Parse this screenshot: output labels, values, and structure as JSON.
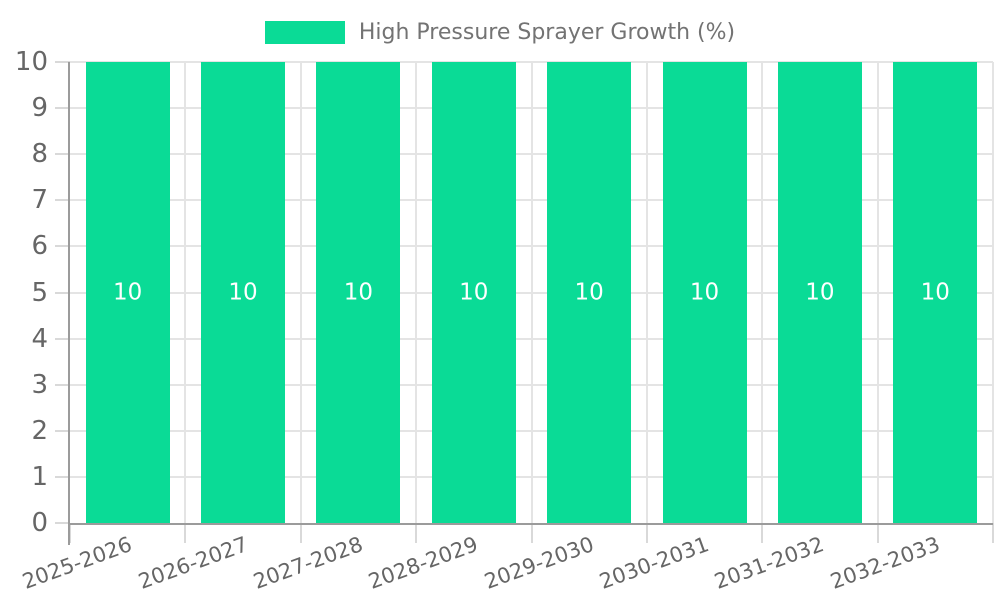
{
  "legend": {
    "label": "High Pressure Sprayer Growth (%)"
  },
  "chart_data": {
    "type": "bar",
    "title": "High Pressure Sprayer Growth (%)",
    "categories": [
      "2025-2026",
      "2026-2027",
      "2027-2028",
      "2028-2029",
      "2029-2030",
      "2030-2031",
      "2031-2032",
      "2032-2033"
    ],
    "series": [
      {
        "name": "High Pressure Sprayer Growth (%)",
        "values": [
          10,
          10,
          10,
          10,
          10,
          10,
          10,
          10
        ]
      }
    ],
    "bar_labels": [
      "10",
      "10",
      "10",
      "10",
      "10",
      "10",
      "10",
      "10"
    ],
    "xlabel": "",
    "ylabel": "",
    "ylim": [
      0,
      10
    ],
    "y_ticks": [
      "0",
      "1",
      "2",
      "3",
      "4",
      "5",
      "6",
      "7",
      "8",
      "9",
      "10"
    ],
    "grid": true,
    "legend_position": "top-center",
    "x_label_rotation_deg": 20,
    "colors": {
      "bar": "#0adb96",
      "bar_value_label": "#ffffff",
      "axis_line": "#9b9b9b",
      "grid_line": "#e4e4e4",
      "tick_mark": "#d9d9d9",
      "tick_label": "#666666",
      "legend_text": "#737373",
      "background": "#ffffff"
    }
  }
}
